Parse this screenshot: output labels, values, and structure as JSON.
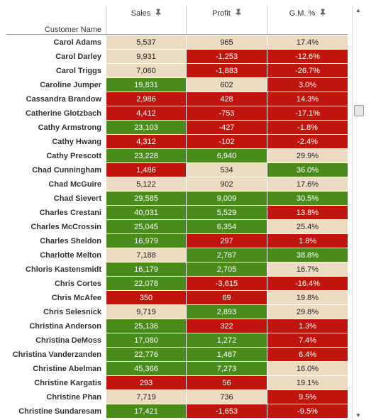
{
  "header": {
    "row_label": "Customer Name",
    "columns": [
      "Sales",
      "Profit",
      "G.M. %"
    ],
    "pin_icon": "pin-icon"
  },
  "colors": {
    "green": "#4a8c1c",
    "red": "#c0140e",
    "tan": "#ecdcc2"
  },
  "rows": [
    {
      "name": "Carol Adams",
      "sales": "5,537",
      "sc": "t",
      "profit": "965",
      "pc": "t",
      "gm": "17.4%",
      "gc": "t"
    },
    {
      "name": "Carol Darley",
      "sales": "9,931",
      "sc": "t",
      "profit": "-1,253",
      "pc": "r",
      "gm": "-12.6%",
      "gc": "r"
    },
    {
      "name": "Carol Triggs",
      "sales": "7,060",
      "sc": "t",
      "profit": "-1,883",
      "pc": "r",
      "gm": "-26.7%",
      "gc": "r"
    },
    {
      "name": "Caroline Jumper",
      "sales": "19,831",
      "sc": "g",
      "profit": "602",
      "pc": "t",
      "gm": "3.0%",
      "gc": "r"
    },
    {
      "name": "Cassandra Brandow",
      "sales": "2,986",
      "sc": "r",
      "profit": "428",
      "pc": "r",
      "gm": "14.3%",
      "gc": "r"
    },
    {
      "name": "Catherine Glotzbach",
      "sales": "4,412",
      "sc": "r",
      "profit": "-753",
      "pc": "r",
      "gm": "-17.1%",
      "gc": "r"
    },
    {
      "name": "Cathy Armstrong",
      "sales": "23,103",
      "sc": "g",
      "profit": "-427",
      "pc": "r",
      "gm": "-1.8%",
      "gc": "r"
    },
    {
      "name": "Cathy Hwang",
      "sales": "4,312",
      "sc": "r",
      "profit": "-102",
      "pc": "r",
      "gm": "-2.4%",
      "gc": "r"
    },
    {
      "name": "Cathy Prescott",
      "sales": "23,228",
      "sc": "g",
      "profit": "6,940",
      "pc": "g",
      "gm": "29.9%",
      "gc": "t"
    },
    {
      "name": "Chad Cunningham",
      "sales": "1,486",
      "sc": "r",
      "profit": "534",
      "pc": "t",
      "gm": "36.0%",
      "gc": "g"
    },
    {
      "name": "Chad McGuire",
      "sales": "5,122",
      "sc": "t",
      "profit": "902",
      "pc": "t",
      "gm": "17.6%",
      "gc": "t"
    },
    {
      "name": "Chad Sievert",
      "sales": "29,585",
      "sc": "g",
      "profit": "9,009",
      "pc": "g",
      "gm": "30.5%",
      "gc": "g"
    },
    {
      "name": "Charles Crestani",
      "sales": "40,031",
      "sc": "g",
      "profit": "5,529",
      "pc": "g",
      "gm": "13.8%",
      "gc": "r"
    },
    {
      "name": "Charles McCrossin",
      "sales": "25,045",
      "sc": "g",
      "profit": "6,354",
      "pc": "g",
      "gm": "25.4%",
      "gc": "t"
    },
    {
      "name": "Charles Sheldon",
      "sales": "16,979",
      "sc": "g",
      "profit": "297",
      "pc": "r",
      "gm": "1.8%",
      "gc": "r"
    },
    {
      "name": "Charlotte Melton",
      "sales": "7,188",
      "sc": "t",
      "profit": "2,787",
      "pc": "g",
      "gm": "38.8%",
      "gc": "g"
    },
    {
      "name": "Chloris Kastensmidt",
      "sales": "16,179",
      "sc": "g",
      "profit": "2,705",
      "pc": "g",
      "gm": "16.7%",
      "gc": "t"
    },
    {
      "name": "Chris Cortes",
      "sales": "22,078",
      "sc": "g",
      "profit": "-3,615",
      "pc": "r",
      "gm": "-16.4%",
      "gc": "r"
    },
    {
      "name": "Chris McAfee",
      "sales": "350",
      "sc": "r",
      "profit": "69",
      "pc": "r",
      "gm": "19.8%",
      "gc": "t"
    },
    {
      "name": "Chris Selesnick",
      "sales": "9,719",
      "sc": "t",
      "profit": "2,893",
      "pc": "g",
      "gm": "29.8%",
      "gc": "t"
    },
    {
      "name": "Christina Anderson",
      "sales": "25,136",
      "sc": "g",
      "profit": "322",
      "pc": "r",
      "gm": "1.3%",
      "gc": "r"
    },
    {
      "name": "Christina DeMoss",
      "sales": "17,080",
      "sc": "g",
      "profit": "1,272",
      "pc": "g",
      "gm": "7.4%",
      "gc": "r"
    },
    {
      "name": "Christina Vanderzanden",
      "sales": "22,776",
      "sc": "g",
      "profit": "1,467",
      "pc": "g",
      "gm": "6.4%",
      "gc": "r"
    },
    {
      "name": "Christine Abelman",
      "sales": "45,366",
      "sc": "g",
      "profit": "7,273",
      "pc": "g",
      "gm": "16.0%",
      "gc": "t"
    },
    {
      "name": "Christine Kargatis",
      "sales": "293",
      "sc": "r",
      "profit": "56",
      "pc": "r",
      "gm": "19.1%",
      "gc": "t"
    },
    {
      "name": "Christine Phan",
      "sales": "7,719",
      "sc": "t",
      "profit": "736",
      "pc": "t",
      "gm": "9.5%",
      "gc": "r"
    },
    {
      "name": "Christine Sundaresam",
      "sales": "17,421",
      "sc": "g",
      "profit": "-1,653",
      "pc": "r",
      "gm": "-9.5%",
      "gc": "r"
    }
  ]
}
